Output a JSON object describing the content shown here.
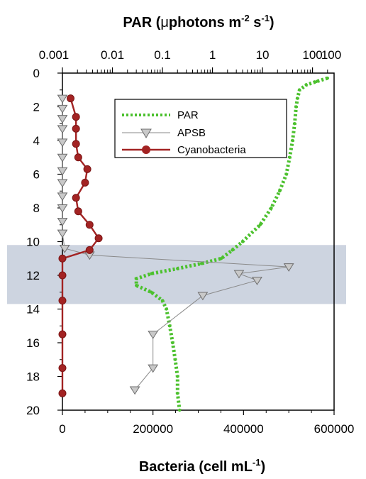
{
  "chart_data": {
    "type": "line",
    "title": "",
    "top_axis": {
      "label_main": "PAR (",
      "label_mu": "μ",
      "label_unit": "photons m",
      "label_exp1": "-2",
      "label_mid": " s",
      "label_exp2": "-1",
      "label_close": ")",
      "scale": "log",
      "range": [
        0.001,
        270
      ],
      "tick_labels": [
        "0.001",
        "0.01",
        "0.1",
        "1",
        "10",
        "100",
        "100"
      ]
    },
    "bottom_axis": {
      "label_main": "Bacteria (cell mL",
      "label_exp": "-1",
      "label_close": ")",
      "range": [
        0,
        600000
      ],
      "tick_labels": [
        "0",
        "200000",
        "400000",
        "600000"
      ]
    },
    "y_axis": {
      "label": "",
      "range": [
        0,
        20
      ],
      "inverted": true,
      "tick_labels": [
        "0",
        "2",
        "4",
        "6",
        "8",
        "10",
        "12",
        "14",
        "16",
        "18",
        "20"
      ]
    },
    "grid": false,
    "legend": {
      "placement": "top-center",
      "entries": [
        "PAR",
        "APSB",
        "Cyanobacteria"
      ]
    },
    "shaded_band": {
      "from": 10.2,
      "to": 13.7,
      "color": "#cdd4e0"
    },
    "colors": {
      "par": "#4cc12e",
      "apsb": "#8a8a8a",
      "cyanobacteria": "#a32323"
    },
    "series": [
      {
        "name": "PAR",
        "axis": "top",
        "style": "dotted",
        "depth": [
          0.3,
          0.5,
          0.7,
          1.0,
          1.5,
          2.0,
          3.0,
          4.0,
          5.0,
          6.0,
          7.0,
          8.0,
          9.0,
          10.0,
          10.5,
          11.0,
          11.3,
          11.6,
          11.9,
          12.2,
          12.6,
          13.0,
          13.5,
          14.0,
          15.0,
          16.0,
          17.0,
          18.0,
          19.0,
          20.0
        ],
        "values": [
          200,
          120,
          75,
          55,
          50,
          47,
          44,
          40,
          35,
          30,
          22,
          15,
          9,
          4,
          2.5,
          1.5,
          0.6,
          0.2,
          0.06,
          0.03,
          0.03,
          0.06,
          0.1,
          0.12,
          0.14,
          0.16,
          0.18,
          0.2,
          0.2,
          0.22
        ]
      },
      {
        "name": "APSB",
        "axis": "bottom",
        "marker": "triangle-down",
        "depth": [
          1.5,
          2.1,
          2.7,
          3.3,
          4.1,
          5.0,
          5.8,
          6.5,
          7.3,
          8.0,
          8.8,
          9.5,
          10.4,
          10.8,
          11.5,
          11.9,
          12.3,
          13.2,
          15.5,
          17.5,
          18.8
        ],
        "values": [
          0,
          0,
          0,
          0,
          0,
          0,
          0,
          0,
          0,
          0,
          0,
          0,
          5000,
          60000,
          500000,
          390000,
          430000,
          310000,
          200000,
          200000,
          160000
        ]
      },
      {
        "name": "Cyanobacteria",
        "axis": "bottom",
        "marker": "circle",
        "depth": [
          1.5,
          2.6,
          3.3,
          4.2,
          5.0,
          5.7,
          6.5,
          7.4,
          8.2,
          9.0,
          9.8,
          10.5,
          11.0,
          12.0,
          13.5,
          15.5,
          17.5,
          19.0
        ],
        "values": [
          18000,
          30000,
          30000,
          30000,
          35000,
          55000,
          50000,
          30000,
          35000,
          60000,
          80000,
          60000,
          0,
          0,
          0,
          0,
          0,
          0
        ]
      }
    ]
  }
}
